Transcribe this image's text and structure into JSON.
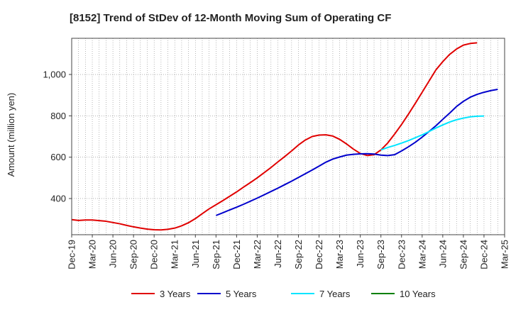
{
  "chart_data": {
    "type": "line",
    "title": "[8152]  Trend of StDev of 12-Month Moving Sum of Operating CF",
    "ylabel": "Amount (million yen)",
    "xlabel": "",
    "ylim": [
      225,
      1175
    ],
    "yticks": [
      400,
      600,
      800,
      "1,000"
    ],
    "ytick_values": [
      400,
      600,
      800,
      1000
    ],
    "x_categories": [
      "Dec-19",
      "Mar-20",
      "Jun-20",
      "Sep-20",
      "Dec-20",
      "Mar-21",
      "Jun-21",
      "Sep-21",
      "Dec-21",
      "Mar-22",
      "Jun-22",
      "Sep-22",
      "Dec-22",
      "Mar-23",
      "Jun-23",
      "Sep-23",
      "Dec-23",
      "Mar-24",
      "Jun-24",
      "Sep-24",
      "Dec-24",
      "Mar-25"
    ],
    "grid": true,
    "legend_position": "bottom",
    "series": [
      {
        "name": "3 Years",
        "color": "#e00000",
        "start_index": 0,
        "values": [
          298,
          294,
          296,
          296,
          293,
          290,
          284,
          278,
          270,
          263,
          257,
          252,
          249,
          248,
          251,
          257,
          268,
          283,
          303,
          327,
          350,
          370,
          390,
          411,
          432,
          455,
          477,
          500,
          525,
          550,
          577,
          603,
          630,
          659,
          683,
          700,
          707,
          708,
          702,
          686,
          664,
          639,
          618,
          608,
          612,
          635,
          669,
          712,
          758,
          808,
          860,
          914,
          968,
          1022,
          1062,
          1097,
          1123,
          1142,
          1150,
          1153
        ]
      },
      {
        "name": "5 Years",
        "color": "#0000cc",
        "start_index": 21,
        "values": [
          318,
          331,
          345,
          358,
          372,
          387,
          402,
          418,
          434,
          450,
          467,
          484,
          502,
          520,
          538,
          557,
          576,
          591,
          601,
          610,
          614,
          616,
          617,
          615,
          610,
          608,
          612,
          630,
          650,
          672,
          697,
          724,
          752,
          783,
          813,
          845,
          870,
          890,
          904,
          914,
          922,
          928
        ]
      },
      {
        "name": "7 Years",
        "color": "#00e5ff",
        "start_index": 45,
        "values": [
          635,
          647,
          657,
          668,
          680,
          694,
          708,
          724,
          741,
          756,
          770,
          781,
          789,
          795,
          798,
          799
        ]
      },
      {
        "name": "10 Years",
        "color": "#008000",
        "start_index": 0,
        "values": []
      }
    ]
  }
}
